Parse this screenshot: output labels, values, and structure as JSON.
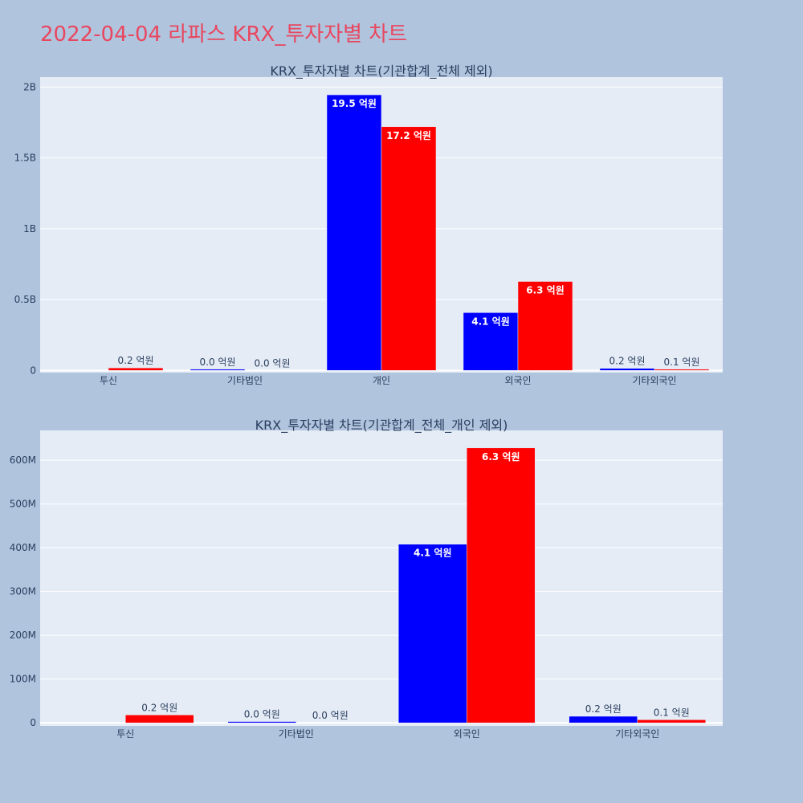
{
  "title": "2022-04-04 라파스 KRX_투자자별 차트",
  "colors": {
    "title": "#e8475f",
    "page_bg": "#b0c4de",
    "plot_bg": "#e5ecf6",
    "grid": "#ffffff",
    "text": "#2a3f5f"
  },
  "chart_data": [
    {
      "type": "bar",
      "title": "KRX_투자자별 차트(기관합계_전체 제외)",
      "categories": [
        "투신",
        "기타법인",
        "개인",
        "외국인",
        "기타외국인"
      ],
      "series": [
        {
          "color": "#0000ff",
          "values": [
            0,
            3000000,
            1945000000,
            408000000,
            15000000
          ],
          "labels": [
            "",
            "0.0 억원",
            "19.5 억원",
            "4.1 억원",
            "0.2 억원"
          ]
        },
        {
          "color": "#ff0000",
          "values": [
            18000000,
            0,
            1720000000,
            628000000,
            7000000
          ],
          "labels": [
            "0.2 억원",
            "0.0 억원",
            "17.2 억원",
            "6.3 억원",
            "0.1 억원"
          ]
        }
      ],
      "yticks": [
        0,
        500000000,
        1000000000,
        1500000000,
        2000000000
      ],
      "ytick_labels": [
        "0",
        "0.5B",
        "1B",
        "1.5B",
        "2B"
      ],
      "ylim": [
        -15000000,
        2070000000
      ],
      "grid": true
    },
    {
      "type": "bar",
      "title": "KRX_투자자별 차트(기관합계_전체_개인 제외)",
      "categories": [
        "투신",
        "기타법인",
        "외국인",
        "기타외국인"
      ],
      "series": [
        {
          "color": "#0000ff",
          "values": [
            0,
            3000000,
            408000000,
            15000000
          ],
          "labels": [
            "",
            "0.0 억원",
            "4.1 억원",
            "0.2 억원"
          ]
        },
        {
          "color": "#ff0000",
          "values": [
            18000000,
            0,
            628000000,
            7000000
          ],
          "labels": [
            "0.2 억원",
            "0.0 억원",
            "6.3 억원",
            "0.1 억원"
          ]
        }
      ],
      "yticks": [
        0,
        100000000,
        200000000,
        300000000,
        400000000,
        500000000,
        600000000
      ],
      "ytick_labels": [
        "0",
        "100M",
        "200M",
        "300M",
        "400M",
        "500M",
        "600M"
      ],
      "ylim": [
        -7000000,
        668000000
      ],
      "grid": true
    }
  ]
}
